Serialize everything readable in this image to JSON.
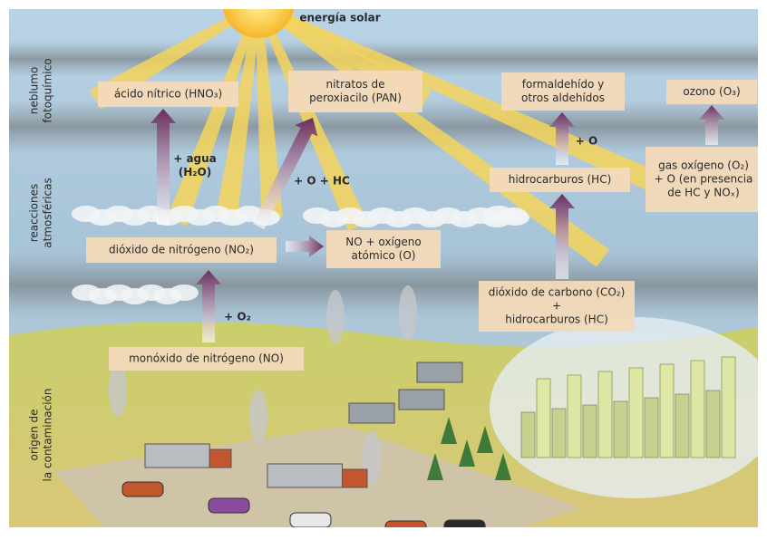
{
  "title": "energía solar",
  "side_labels": [
    {
      "lines": [
        "neblumo",
        "fotoquímico"
      ]
    },
    {
      "lines": [
        "reacciones",
        "atmosféricas"
      ]
    },
    {
      "lines": [
        "origen de",
        "la contaminación"
      ]
    }
  ],
  "nodes": [
    {
      "lines": [
        "ácido nítrico (HNO₃)"
      ]
    },
    {
      "lines": [
        "nitratos de",
        "peroxiacilo (PAN)"
      ]
    },
    {
      "lines": [
        "formaldehído y",
        "otros aldehídos"
      ]
    },
    {
      "lines": [
        "ozono (O₃)"
      ]
    },
    {
      "lines": [
        "hidrocarburos (HC)"
      ]
    },
    {
      "lines": [
        "gas oxígeno (O₂)",
        "+ O (en presencia",
        "de HC y NOₓ)"
      ]
    },
    {
      "lines": [
        "dióxido de nitrógeno (NO₂)"
      ]
    },
    {
      "lines": [
        "NO + oxígeno",
        "atómico (O)"
      ]
    },
    {
      "lines": [
        "dióxido de carbono (CO₂)",
        "+",
        "hidrocarburos (HC)"
      ]
    },
    {
      "lines": [
        "monóxido de nitrógeno (NO)"
      ]
    }
  ],
  "arrow_labels": [
    {
      "lines": [
        "+ agua",
        "(H₂O)"
      ]
    },
    {
      "lines": [
        "+ O + HC"
      ]
    },
    {
      "lines": [
        "+ O"
      ]
    },
    {
      "lines": [
        "+ O₂"
      ]
    }
  ]
}
